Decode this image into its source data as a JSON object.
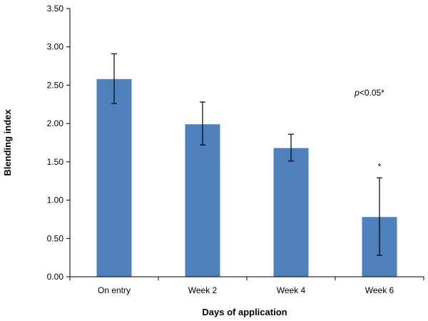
{
  "chart_data": {
    "type": "bar",
    "categories": [
      "On entry",
      "Week 2",
      "Week 4",
      "Week 6"
    ],
    "values": [
      2.58,
      1.99,
      1.68,
      0.78
    ],
    "error_upper": [
      2.91,
      2.28,
      1.86,
      1.29
    ],
    "error_lower": [
      2.26,
      1.72,
      1.51,
      0.28
    ],
    "markers": [
      "",
      "",
      "",
      "*"
    ],
    "xlabel": "Days of application",
    "ylabel": "Blending index",
    "ylim": [
      0,
      3.5
    ],
    "yticks": [
      "0.00",
      "0.50",
      "1.00",
      "1.50",
      "2.00",
      "2.50",
      "3.00",
      "3.50"
    ],
    "annotation": {
      "italic_part": "p",
      "rest": "<0.05*"
    },
    "bar_color": "#4f81bd",
    "grid": false,
    "legend": "none"
  }
}
